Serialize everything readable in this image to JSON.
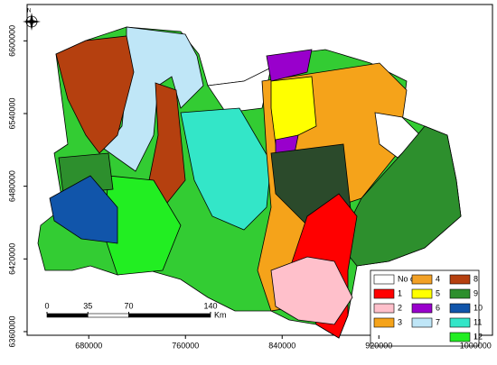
{
  "map": {
    "compass": "N",
    "xlim": [
      629000,
      1014000
    ],
    "ylim": [
      6357000,
      6630000
    ],
    "xticks": [
      680000,
      760000,
      840000,
      920000,
      1000000
    ],
    "yticks": [
      6360000,
      6420000,
      6480000,
      6540000,
      6600000
    ],
    "scale_bar": {
      "ticks": [
        0,
        35,
        70,
        140
      ],
      "unit": "Km"
    },
    "legend": [
      {
        "label": "No data",
        "color": "#ffffff"
      },
      {
        "label": "1",
        "color": "#ff0000"
      },
      {
        "label": "2",
        "color": "#ffc0cb"
      },
      {
        "label": "3",
        "color": "#f5a31a"
      },
      {
        "label": "4",
        "color": "#f2a126"
      },
      {
        "label": "5",
        "color": "#ffff00"
      },
      {
        "label": "6",
        "color": "#9900cc"
      },
      {
        "label": "7",
        "color": "#bfe6f7"
      },
      {
        "label": "8",
        "color": "#b5400f"
      },
      {
        "label": "9",
        "color": "#2d8f2d"
      },
      {
        "label": "10",
        "color": "#1155aa"
      },
      {
        "label": "11",
        "color": "#33e6c8"
      },
      {
        "label": "12",
        "color": "#22ee22"
      }
    ]
  }
}
